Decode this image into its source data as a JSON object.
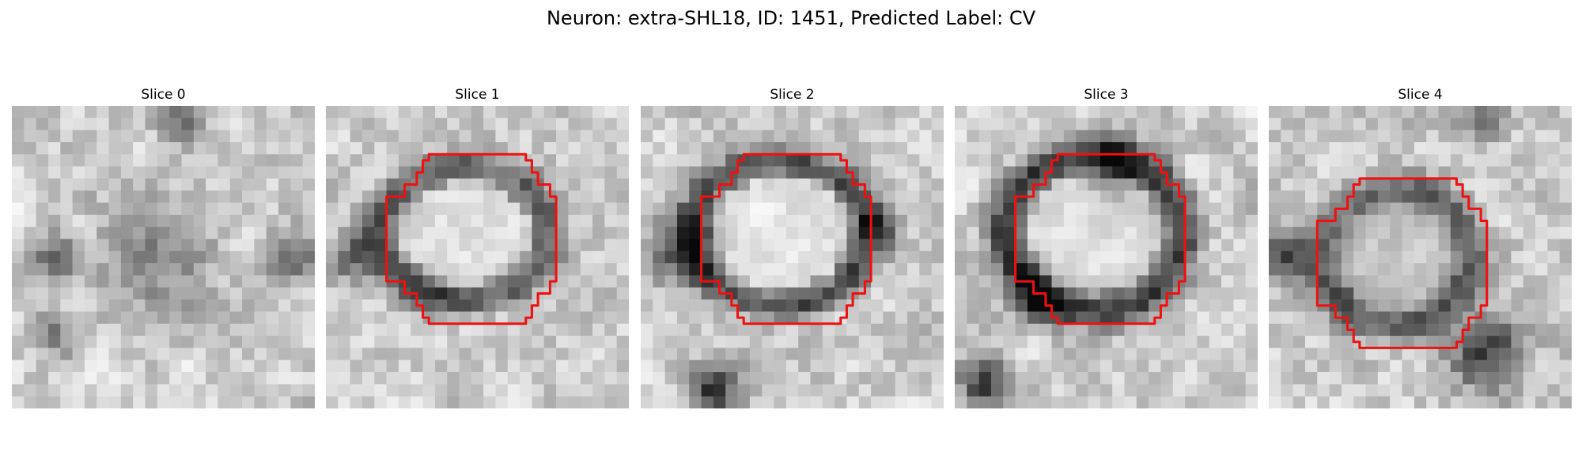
{
  "figure": {
    "title": "Neuron: extra-SHL18, ID: 1451, Predicted Label: CV",
    "colormap": "grayscale",
    "contour_color": "#ee1111"
  },
  "panels": [
    {
      "title": "Slice 0",
      "has_contour": false
    },
    {
      "title": "Slice 1",
      "has_contour": true
    },
    {
      "title": "Slice 2",
      "has_contour": true
    },
    {
      "title": "Slice 3",
      "has_contour": true
    },
    {
      "title": "Slice 4",
      "has_contour": true
    }
  ]
}
